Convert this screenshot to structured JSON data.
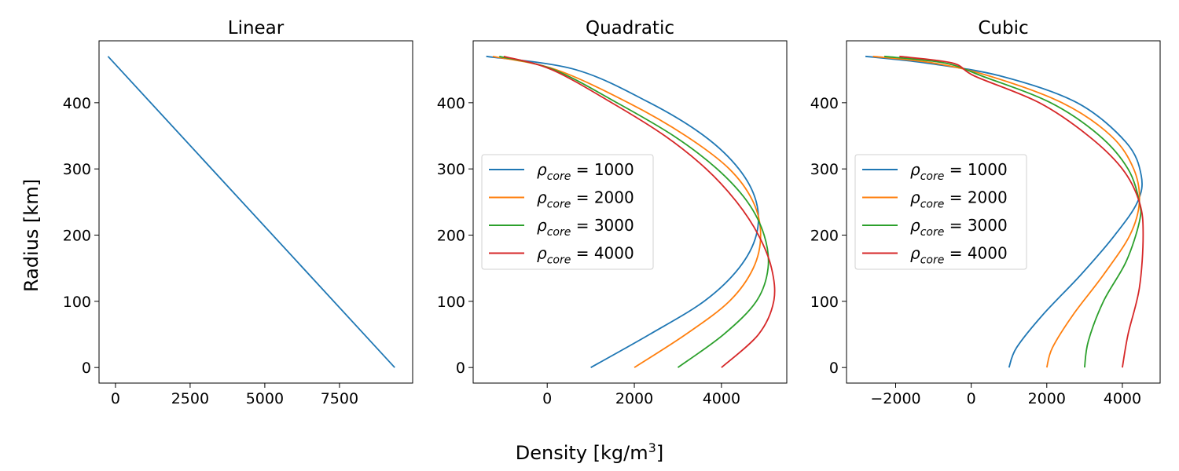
{
  "figure": {
    "xlabel_text": "Density [kg/m",
    "xlabel_sup": "3",
    "xlabel_end": "]",
    "ylabel": "Radius [km]"
  },
  "legend_entries": [
    {
      "symbol": "ρ",
      "sub": "core",
      "text": " = 1000",
      "color": "#1f77b4"
    },
    {
      "symbol": "ρ",
      "sub": "core",
      "text": " = 2000",
      "color": "#ff7f0e"
    },
    {
      "symbol": "ρ",
      "sub": "core",
      "text": " = 3000",
      "color": "#2ca02c"
    },
    {
      "symbol": "ρ",
      "sub": "core",
      "text": " = 4000",
      "color": "#d62728"
    }
  ],
  "chart_data": [
    {
      "type": "line",
      "title": "Linear",
      "xlim": [
        -550,
        9950
      ],
      "ylim": [
        -23.5,
        493.5
      ],
      "xticks": [
        0,
        2500,
        5000,
        7500
      ],
      "yticks": [
        0,
        100,
        200,
        300,
        400
      ],
      "series": [
        {
          "color": "#1f77b4",
          "points": [
            [
              9350,
              0
            ],
            [
              -250,
              470
            ]
          ]
        }
      ]
    },
    {
      "type": "line",
      "title": "Quadratic",
      "xlim": [
        -1700,
        5500
      ],
      "ylim": [
        -23.5,
        493.5
      ],
      "xticks": [
        0,
        2000,
        4000
      ],
      "yticks": [
        0,
        100,
        200,
        300,
        400
      ],
      "legend": "center-left",
      "series": [
        {
          "name": "ρcore = 1000",
          "color": "#1f77b4",
          "points": [
            [
              1000,
              0
            ],
            [
              2350,
              50
            ],
            [
              3600,
              100
            ],
            [
              4400,
              150
            ],
            [
              4800,
              200
            ],
            [
              4800,
              250
            ],
            [
              4400,
              300
            ],
            [
              3600,
              350
            ],
            [
              2350,
              400
            ],
            [
              650,
              450
            ],
            [
              -1400,
              470
            ]
          ]
        },
        {
          "name": "ρcore = 2000",
          "color": "#ff7f0e",
          "points": [
            [
              2000,
              0
            ],
            [
              3180,
              50
            ],
            [
              4180,
              100
            ],
            [
              4730,
              150
            ],
            [
              4900,
              200
            ],
            [
              4730,
              250
            ],
            [
              4180,
              300
            ],
            [
              3180,
              350
            ],
            [
              1860,
              400
            ],
            [
              200,
              450
            ],
            [
              -1250,
              470
            ]
          ]
        },
        {
          "name": "ρcore = 3000",
          "color": "#2ca02c",
          "points": [
            [
              3000,
              0
            ],
            [
              4050,
              50
            ],
            [
              4800,
              100
            ],
            [
              5070,
              150
            ],
            [
              4980,
              200
            ],
            [
              4600,
              250
            ],
            [
              3900,
              300
            ],
            [
              2900,
              350
            ],
            [
              1600,
              400
            ],
            [
              150,
              450
            ],
            [
              -1100,
              470
            ]
          ]
        },
        {
          "name": "ρcore = 4000",
          "color": "#d62728",
          "points": [
            [
              4000,
              0
            ],
            [
              4850,
              50
            ],
            [
              5200,
              100
            ],
            [
              5150,
              150
            ],
            [
              4850,
              200
            ],
            [
              4350,
              250
            ],
            [
              3650,
              300
            ],
            [
              2700,
              350
            ],
            [
              1480,
              400
            ],
            [
              100,
              450
            ],
            [
              -1000,
              470
            ]
          ]
        }
      ]
    },
    {
      "type": "line",
      "title": "Cubic",
      "xlim": [
        -3300,
        5000
      ],
      "ylim": [
        -23.5,
        493.5
      ],
      "xticks": [
        -2000,
        0,
        2000,
        4000
      ],
      "yticks": [
        0,
        100,
        200,
        300,
        400
      ],
      "legend": "center-left",
      "series": [
        {
          "name": "ρcore = 1000",
          "color": "#1f77b4",
          "points": [
            [
              1000,
              0
            ],
            [
              1200,
              30
            ],
            [
              1900,
              80
            ],
            [
              2900,
              140
            ],
            [
              3800,
              200
            ],
            [
              4400,
              250
            ],
            [
              4500,
              290
            ],
            [
              4100,
              340
            ],
            [
              2800,
              400
            ],
            [
              800,
              440
            ],
            [
              -1200,
              460
            ],
            [
              -2800,
              470
            ]
          ]
        },
        {
          "name": "ρcore = 2000",
          "color": "#ff7f0e",
          "points": [
            [
              2000,
              0
            ],
            [
              2150,
              30
            ],
            [
              2700,
              80
            ],
            [
              3500,
              140
            ],
            [
              4200,
              200
            ],
            [
              4450,
              250
            ],
            [
              4300,
              300
            ],
            [
              3700,
              350
            ],
            [
              2400,
              400
            ],
            [
              500,
              440
            ],
            [
              -1000,
              460
            ],
            [
              -2600,
              470
            ]
          ]
        },
        {
          "name": "ρcore = 3000",
          "color": "#2ca02c",
          "points": [
            [
              3000,
              0
            ],
            [
              3100,
              40
            ],
            [
              3500,
              100
            ],
            [
              4100,
              160
            ],
            [
              4450,
              220
            ],
            [
              4450,
              250
            ],
            [
              4150,
              300
            ],
            [
              3400,
              350
            ],
            [
              2100,
              400
            ],
            [
              300,
              440
            ],
            [
              -700,
              460
            ],
            [
              -2300,
              470
            ]
          ]
        },
        {
          "name": "ρcore = 4000",
          "color": "#d62728",
          "points": [
            [
              4000,
              0
            ],
            [
              4150,
              50
            ],
            [
              4450,
              120
            ],
            [
              4550,
              200
            ],
            [
              4450,
              250
            ],
            [
              4000,
              300
            ],
            [
              3100,
              350
            ],
            [
              1800,
              400
            ],
            [
              100,
              440
            ],
            [
              -500,
              460
            ],
            [
              -1900,
              470
            ]
          ]
        }
      ]
    }
  ]
}
